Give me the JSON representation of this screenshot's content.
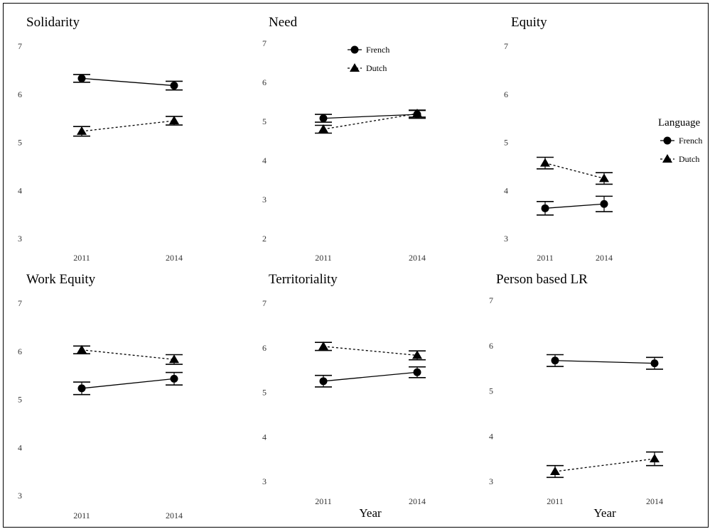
{
  "chart_data": [
    {
      "type": "line",
      "title": "Solidarity",
      "categories": [
        "2011",
        "2014"
      ],
      "ylim": [
        3,
        7
      ],
      "yticks": [
        3,
        4,
        5,
        6,
        7
      ],
      "xlabel": "",
      "series": [
        {
          "name": "French",
          "values": [
            6.33,
            6.18
          ],
          "err": [
            0.08,
            0.09
          ]
        },
        {
          "name": "Dutch",
          "values": [
            5.23,
            5.45
          ],
          "err": [
            0.1,
            0.09
          ]
        }
      ]
    },
    {
      "type": "line",
      "title": "Need",
      "categories": [
        "2011",
        "2014"
      ],
      "ylim": [
        2,
        7
      ],
      "yticks": [
        2,
        3,
        4,
        5,
        6,
        7
      ],
      "xlabel": "",
      "series": [
        {
          "name": "French",
          "values": [
            5.08,
            5.18
          ],
          "err": [
            0.1,
            0.1
          ]
        },
        {
          "name": "Dutch",
          "values": [
            4.8,
            5.2
          ],
          "err": [
            0.1,
            0.09
          ]
        }
      ]
    },
    {
      "type": "line",
      "title": "Equity",
      "categories": [
        "2011",
        "2014"
      ],
      "ylim": [
        3,
        7
      ],
      "yticks": [
        3,
        4,
        5,
        6,
        7
      ],
      "xlabel": "",
      "series": [
        {
          "name": "French",
          "values": [
            3.63,
            3.72
          ],
          "err": [
            0.14,
            0.16
          ]
        },
        {
          "name": "Dutch",
          "values": [
            4.57,
            4.25
          ],
          "err": [
            0.12,
            0.12
          ]
        }
      ]
    },
    {
      "type": "line",
      "title": "Work Equity",
      "categories": [
        "2011",
        "2014"
      ],
      "ylim": [
        3,
        7
      ],
      "yticks": [
        3,
        4,
        5,
        6,
        7
      ],
      "xlabel": "",
      "series": [
        {
          "name": "French",
          "values": [
            5.23,
            5.43
          ],
          "err": [
            0.13,
            0.13
          ]
        },
        {
          "name": "Dutch",
          "values": [
            6.03,
            5.83
          ],
          "err": [
            0.08,
            0.1
          ]
        }
      ]
    },
    {
      "type": "line",
      "title": "Territoriality",
      "categories": [
        "2011",
        "2014"
      ],
      "ylim": [
        3,
        7
      ],
      "yticks": [
        3,
        4,
        5,
        6,
        7
      ],
      "xlabel": "Year",
      "series": [
        {
          "name": "French",
          "values": [
            5.25,
            5.45
          ],
          "err": [
            0.13,
            0.12
          ]
        },
        {
          "name": "Dutch",
          "values": [
            6.03,
            5.83
          ],
          "err": [
            0.09,
            0.1
          ]
        }
      ]
    },
    {
      "type": "line",
      "title": "Person based LR",
      "categories": [
        "2011",
        "2014"
      ],
      "ylim": [
        3,
        7
      ],
      "yticks": [
        3,
        4,
        5,
        6,
        7
      ],
      "xlabel": "Year",
      "series": [
        {
          "name": "French",
          "values": [
            5.67,
            5.61
          ],
          "err": [
            0.13,
            0.13
          ]
        },
        {
          "name": "Dutch",
          "values": [
            3.22,
            3.5
          ],
          "err": [
            0.13,
            0.15
          ]
        }
      ]
    }
  ],
  "legend_title": "Language",
  "legend_items": [
    "French",
    "Dutch"
  ]
}
